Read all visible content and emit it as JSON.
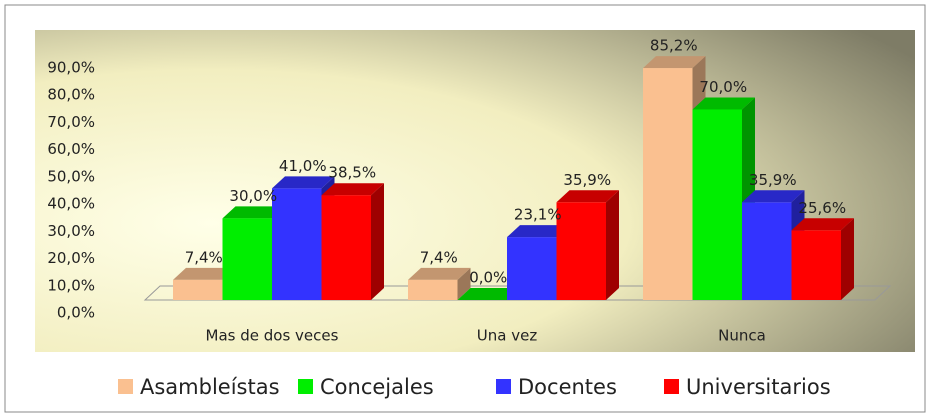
{
  "chart_data": {
    "type": "bar3d",
    "categories": [
      "Mas de dos veces",
      "Una vez",
      "Nunca"
    ],
    "series": [
      {
        "name": "Asambleístas",
        "color": "#fac090",
        "values": [
          7.4,
          7.4,
          85.2
        ],
        "value_labels": [
          "7,4%",
          "7,4%",
          "85,2%"
        ]
      },
      {
        "name": "Concejales",
        "color": "#00ee00",
        "values": [
          30.0,
          0.0,
          70.0
        ],
        "value_labels": [
          "30,0%",
          "0,0%",
          "70,0%"
        ]
      },
      {
        "name": "Docentes",
        "color": "#3333ff",
        "values": [
          41.0,
          23.1,
          35.9
        ],
        "value_labels": [
          "41,0%",
          "23,1%",
          "35,9%"
        ]
      },
      {
        "name": "Universitarios",
        "color": "#ff0000",
        "values": [
          38.5,
          35.9,
          25.6
        ],
        "value_labels": [
          "38,5%",
          "35,9%",
          "25,6%"
        ]
      }
    ],
    "ylim": [
      0,
      90
    ],
    "yticks": [
      {
        "value": 0,
        "label": "0,0%"
      },
      {
        "value": 10,
        "label": "10,0%"
      },
      {
        "value": 20,
        "label": "20,0%"
      },
      {
        "value": 30,
        "label": "30,0%"
      },
      {
        "value": 40,
        "label": "40,0%"
      },
      {
        "value": 50,
        "label": "50,0%"
      },
      {
        "value": 60,
        "label": "60,0%"
      },
      {
        "value": 70,
        "label": "70,0%"
      },
      {
        "value": 80,
        "label": "80,0%"
      },
      {
        "value": 90,
        "label": "90,0%"
      }
    ],
    "legend": "bottom"
  }
}
